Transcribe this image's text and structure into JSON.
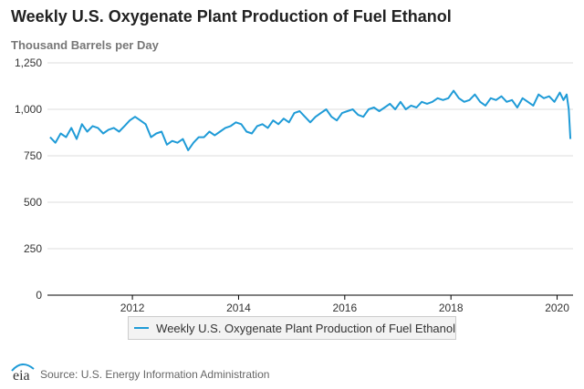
{
  "title": "Weekly U.S. Oxygenate Plant Production of Fuel Ethanol",
  "units": "Thousand Barrels per Day",
  "source": "Source: U.S. Energy Information Administration",
  "logo_text": "eia",
  "colors": {
    "series": "#1f9bd7",
    "grid": "#dddddd",
    "axis": "#000000"
  },
  "chart_data": {
    "type": "line",
    "title": "Weekly U.S. Oxygenate Plant Production of Fuel Ethanol",
    "ylabel": "Thousand Barrels per Day",
    "xlabel": "",
    "xlim": [
      2010.4,
      2020.3
    ],
    "ylim": [
      0,
      1250
    ],
    "yticks": [
      0,
      250,
      500,
      750,
      1000,
      1250
    ],
    "ytick_labels": [
      "0",
      "250",
      "500",
      "750",
      "1,000",
      "1,250"
    ],
    "xticks": [
      2012,
      2014,
      2016,
      2018,
      2020
    ],
    "xtick_labels": [
      "2012",
      "2014",
      "2016",
      "2018",
      "2020"
    ],
    "grid": true,
    "legend": "bottom-center",
    "series": [
      {
        "name": "Weekly U.S. Oxygenate Plant Production of Fuel Ethanol",
        "x": [
          2010.45,
          2010.55,
          2010.65,
          2010.75,
          2010.85,
          2010.95,
          2011.05,
          2011.15,
          2011.25,
          2011.35,
          2011.45,
          2011.55,
          2011.65,
          2011.75,
          2011.85,
          2011.95,
          2012.05,
          2012.15,
          2012.25,
          2012.35,
          2012.45,
          2012.55,
          2012.65,
          2012.75,
          2012.85,
          2012.95,
          2013.05,
          2013.15,
          2013.25,
          2013.35,
          2013.45,
          2013.55,
          2013.65,
          2013.75,
          2013.85,
          2013.95,
          2014.05,
          2014.15,
          2014.25,
          2014.35,
          2014.45,
          2014.55,
          2014.65,
          2014.75,
          2014.85,
          2014.95,
          2015.05,
          2015.15,
          2015.25,
          2015.35,
          2015.45,
          2015.55,
          2015.65,
          2015.75,
          2015.85,
          2015.95,
          2016.05,
          2016.15,
          2016.25,
          2016.35,
          2016.45,
          2016.55,
          2016.65,
          2016.75,
          2016.85,
          2016.95,
          2017.05,
          2017.15,
          2017.25,
          2017.35,
          2017.45,
          2017.55,
          2017.65,
          2017.75,
          2017.85,
          2017.95,
          2018.05,
          2018.15,
          2018.25,
          2018.35,
          2018.45,
          2018.55,
          2018.65,
          2018.75,
          2018.85,
          2018.95,
          2019.05,
          2019.15,
          2019.25,
          2019.35,
          2019.45,
          2019.55,
          2019.65,
          2019.75,
          2019.85,
          2019.95,
          2020.05,
          2020.12,
          2020.18,
          2020.22,
          2020.25
        ],
        "values": [
          850,
          820,
          870,
          850,
          900,
          840,
          920,
          880,
          910,
          900,
          870,
          890,
          900,
          880,
          910,
          940,
          960,
          940,
          920,
          850,
          870,
          880,
          810,
          830,
          820,
          840,
          780,
          820,
          850,
          850,
          880,
          860,
          880,
          900,
          910,
          930,
          920,
          880,
          870,
          910,
          920,
          900,
          940,
          920,
          950,
          930,
          980,
          990,
          960,
          930,
          960,
          980,
          1000,
          960,
          940,
          980,
          990,
          1000,
          970,
          960,
          1000,
          1010,
          990,
          1010,
          1030,
          1000,
          1040,
          1000,
          1020,
          1010,
          1040,
          1030,
          1040,
          1060,
          1050,
          1060,
          1100,
          1060,
          1040,
          1050,
          1080,
          1040,
          1020,
          1060,
          1050,
          1070,
          1040,
          1050,
          1010,
          1060,
          1040,
          1020,
          1080,
          1060,
          1070,
          1040,
          1090,
          1050,
          1080,
          1000,
          840
        ]
      }
    ]
  }
}
